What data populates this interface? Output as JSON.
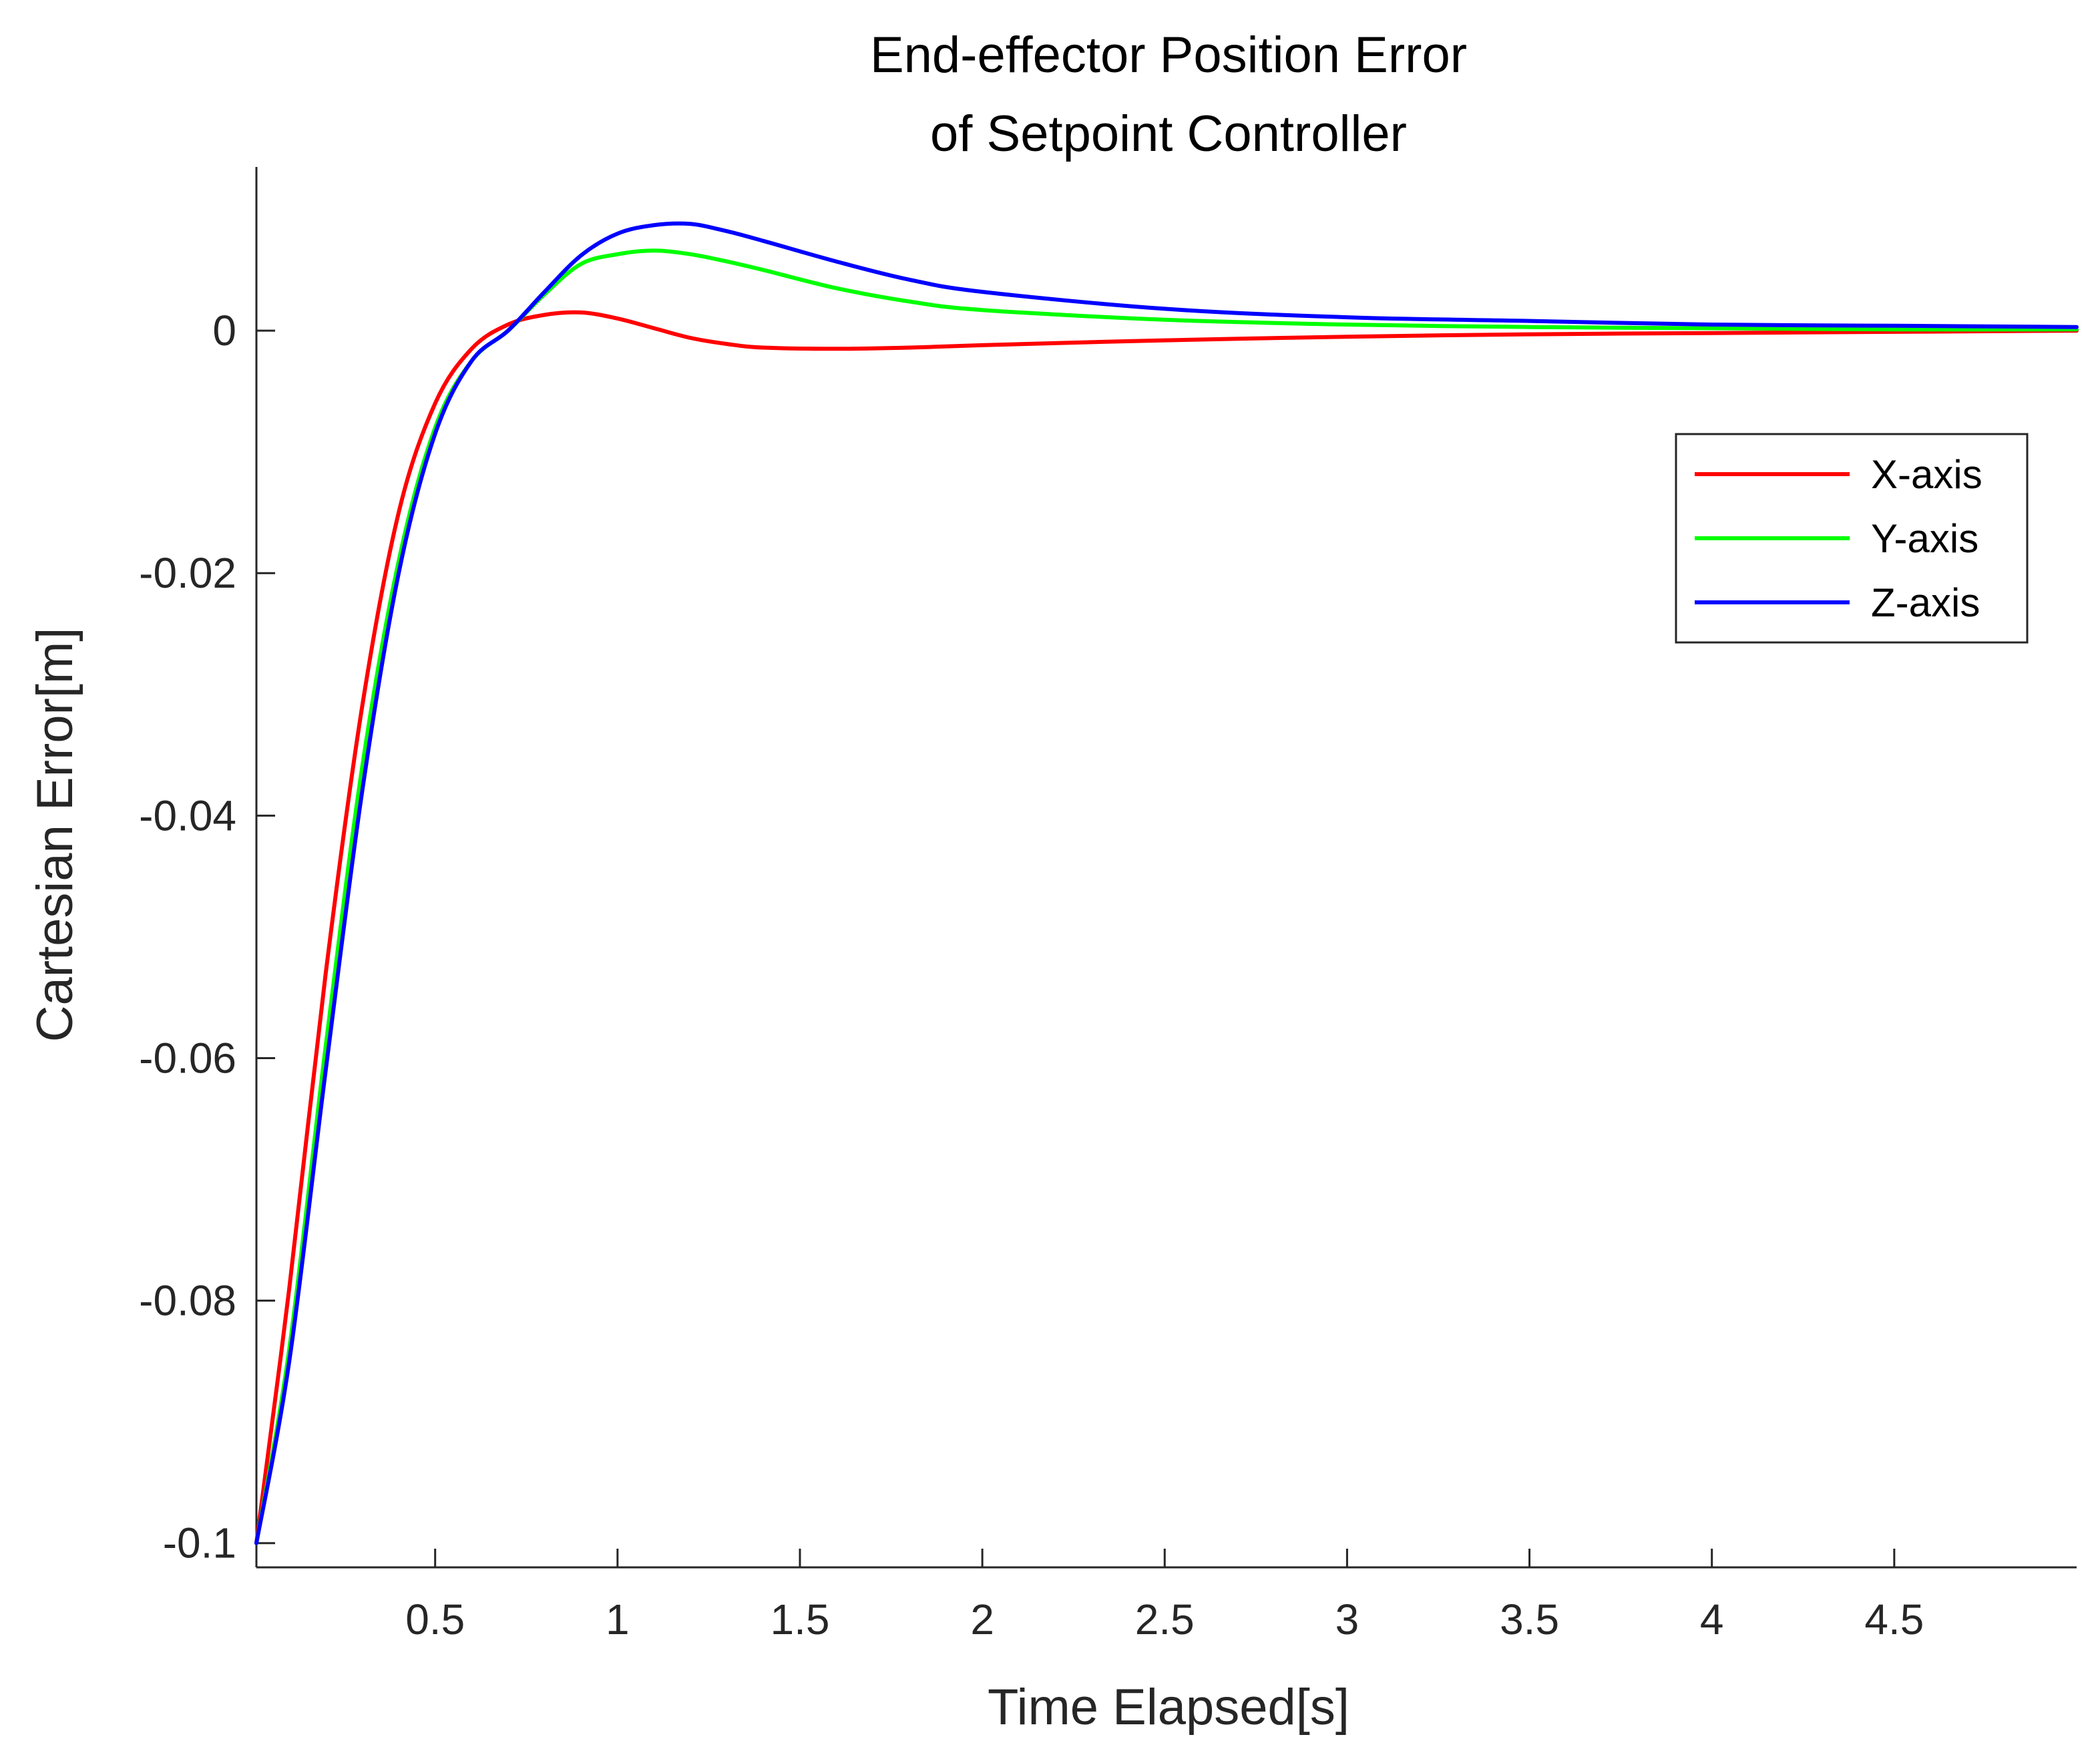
{
  "chart_data": {
    "type": "line",
    "title": [
      "End-effector Position Error",
      "of Setpoint Controller"
    ],
    "xlabel": "Time Elapsed[s]",
    "ylabel": "Cartesian Error[m]",
    "xlim": [
      0.01,
      5.0
    ],
    "ylim": [
      -0.102,
      0.0135
    ],
    "xticks": [
      0.5,
      1,
      1.5,
      2,
      2.5,
      3,
      3.5,
      4,
      4.5
    ],
    "xtick_labels": [
      "0.5",
      "1",
      "1.5",
      "2",
      "2.5",
      "3",
      "3.5",
      "4",
      "4.5"
    ],
    "yticks": [
      -0.1,
      -0.08,
      -0.06,
      -0.04,
      -0.02,
      0
    ],
    "ytick_labels": [
      "-0.1",
      "-0.08",
      "-0.06",
      "-0.04",
      "-0.02",
      "0"
    ],
    "grid": false,
    "legend_position": "top-right",
    "series": [
      {
        "name": "X-axis",
        "color": "#ff0000",
        "x": [
          0.01,
          0.1,
          0.2,
          0.3,
          0.4,
          0.5,
          0.6,
          0.7,
          0.8,
          0.9,
          1.0,
          1.1,
          1.2,
          1.3,
          1.4,
          1.6,
          1.8,
          2.0,
          2.5,
          3.0,
          3.5,
          4.0,
          4.5,
          5.0
        ],
        "y": [
          -0.1,
          -0.079,
          -0.053,
          -0.031,
          -0.015,
          -0.006,
          -0.0015,
          0.0005,
          0.0013,
          0.0015,
          0.001,
          0.0002,
          -0.0006,
          -0.0011,
          -0.0014,
          -0.0015,
          -0.0014,
          -0.0012,
          -0.0008,
          -0.0005,
          -0.0003,
          -0.0002,
          -0.0001,
          0.0
        ]
      },
      {
        "name": "Y-axis",
        "color": "#00ff00",
        "x": [
          0.01,
          0.1,
          0.2,
          0.3,
          0.4,
          0.5,
          0.6,
          0.7,
          0.8,
          0.9,
          1.0,
          1.1,
          1.2,
          1.3,
          1.4,
          1.6,
          1.8,
          2.0,
          2.5,
          3.0,
          3.5,
          4.0,
          4.5,
          5.0
        ],
        "y": [
          -0.1,
          -0.084,
          -0.059,
          -0.036,
          -0.019,
          -0.008,
          -0.0025,
          0.0,
          0.003,
          0.0055,
          0.0063,
          0.0066,
          0.0063,
          0.0057,
          0.005,
          0.0035,
          0.0024,
          0.0017,
          0.0009,
          0.0005,
          0.0003,
          0.0002,
          0.0001,
          0.0001
        ]
      },
      {
        "name": "Z-axis",
        "color": "#0000ff",
        "x": [
          0.01,
          0.1,
          0.2,
          0.3,
          0.4,
          0.5,
          0.6,
          0.7,
          0.8,
          0.9,
          1.0,
          1.1,
          1.2,
          1.3,
          1.4,
          1.6,
          1.8,
          2.0,
          2.5,
          3.0,
          3.5,
          4.0,
          4.5,
          5.0
        ],
        "y": [
          -0.1,
          -0.085,
          -0.061,
          -0.038,
          -0.02,
          -0.0085,
          -0.0025,
          0.0,
          0.0032,
          0.0062,
          0.008,
          0.0087,
          0.0088,
          0.0082,
          0.0074,
          0.0057,
          0.0042,
          0.0032,
          0.0018,
          0.0011,
          0.0008,
          0.0005,
          0.0004,
          0.0003
        ]
      }
    ]
  }
}
